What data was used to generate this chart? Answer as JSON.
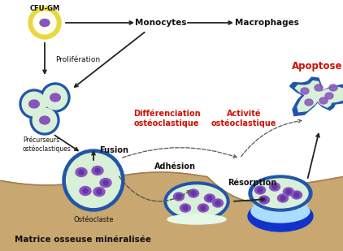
{
  "background_color": "#ffffff",
  "bone_color": "#c8a870",
  "bone_dark": "#a08050",
  "cell_green_light": "#d8f0d8",
  "cell_blue_border": "#2255aa",
  "cell_purple": "#8855bb",
  "cell_yellow_outer": "#e8d840",
  "cell_yellow_inner": "#fffff0",
  "arrow_color": "#222222",
  "red_label_color": "#cc1100",
  "black_label_color": "#111111",
  "dashed_arrow_color": "#555555",
  "blue_resorption": "#1133cc",
  "light_blue_resorption": "#aaddff",
  "labels": {
    "CFU_GM": "CFU-GM",
    "monocytes": "Monocytes",
    "macrophages": "Macrophages",
    "proliferation": "Prolifération",
    "precurseurs": "Précurseurs\nostéoclastiques",
    "fusion": "Fusion",
    "osteoclaste": "Ostéoclaste",
    "adhesion": "Adhésion",
    "resorption": "Résorption",
    "differenciation": "Différenciation\nostéoclastique",
    "activite": "Activité\nostéoclastique",
    "apoptose": "Apoptose",
    "matrice": "Matrice osseuse minéralisée"
  }
}
